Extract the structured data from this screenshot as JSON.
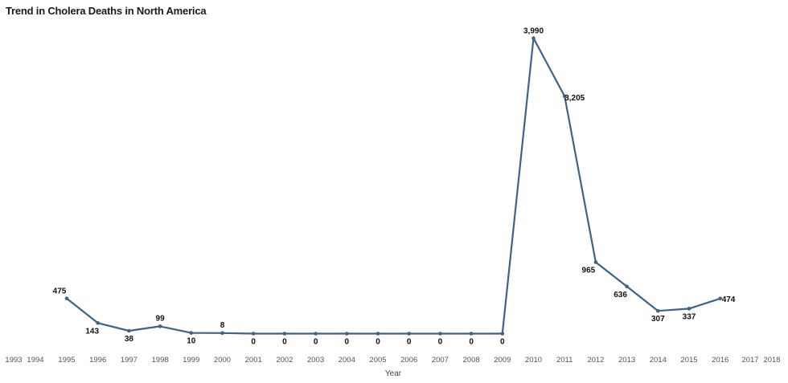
{
  "chart_data": {
    "type": "line",
    "title": "Trend in Cholera Deaths in North America",
    "xlabel": "Year",
    "ylabel": "",
    "x_ticks": [
      1993,
      1994,
      1995,
      1996,
      1997,
      1998,
      1999,
      2000,
      2001,
      2002,
      2003,
      2004,
      2005,
      2006,
      2007,
      2008,
      2009,
      2010,
      2011,
      2012,
      2013,
      2014,
      2015,
      2016,
      2017,
      2018
    ],
    "x": [
      1995,
      1996,
      1997,
      1998,
      1999,
      2000,
      2001,
      2002,
      2003,
      2004,
      2005,
      2006,
      2007,
      2008,
      2009,
      2010,
      2011,
      2012,
      2013,
      2014,
      2015,
      2016
    ],
    "series": [
      {
        "values": [
          475,
          143,
          38,
          99,
          10,
          8,
          0,
          0,
          0,
          0,
          0,
          0,
          0,
          0,
          0,
          3990,
          3205,
          965,
          636,
          307,
          337,
          474
        ],
        "labels": [
          "475",
          "143",
          "38",
          "99",
          "10",
          "8",
          "0",
          "0",
          "0",
          "0",
          "0",
          "0",
          "0",
          "0",
          "0",
          "3,990",
          "3,205",
          "965",
          "636",
          "307",
          "337",
          "474"
        ]
      }
    ],
    "ylim": [
      0,
      4000
    ],
    "grid": false,
    "line_color": "#3e6289",
    "label_color": "#111111"
  }
}
